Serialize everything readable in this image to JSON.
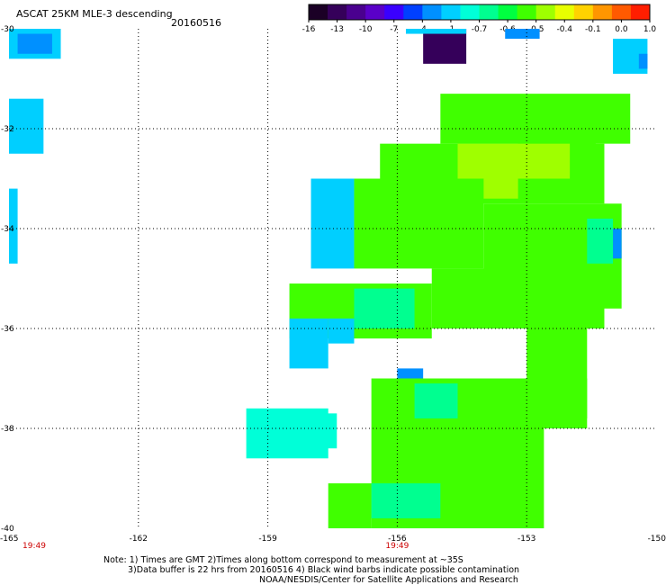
{
  "title": "ASCAT 25KM MLE-3 descending",
  "date": "20160516",
  "colorbar": {
    "labels": [
      "-16",
      "-13",
      "-10",
      "-7",
      "-4",
      "-1",
      "-0.7",
      "-0.6",
      "-0.5",
      "-0.4",
      "-0.1",
      "0.0",
      "1.0"
    ],
    "colors": [
      "#1b0026",
      "#35005a",
      "#4a008f",
      "#5a00c8",
      "#3a00ff",
      "#0040ff",
      "#0090ff",
      "#00cfff",
      "#00ffd8",
      "#00ff90",
      "#00ff40",
      "#40ff00",
      "#9fff00",
      "#e8ff00",
      "#ffd200",
      "#ff9600",
      "#ff5a00",
      "#ff1e00"
    ]
  },
  "chart_data": {
    "type": "heatmap",
    "title": "ASCAT 25KM MLE-3 descending",
    "date": "20160516",
    "xlim": [
      -165,
      -150
    ],
    "ylim": [
      -40,
      -30
    ],
    "x_ticks": [
      "-165",
      "-162",
      "-159",
      "-156",
      "-153",
      "-150"
    ],
    "y_ticks": [
      "-30",
      "-32",
      "-34",
      "-36",
      "-38",
      "-40"
    ],
    "x_time_labels": [
      {
        "x": -165,
        "label": "19:49"
      },
      {
        "x": -156,
        "label": "19:49"
      }
    ],
    "grid": true,
    "cells": [
      {
        "lon0": -165.0,
        "lon1": -163.8,
        "lat0": -30.6,
        "lat1": -30.0,
        "v": -2.0
      },
      {
        "lon0": -164.8,
        "lon1": -164.0,
        "lat0": -30.5,
        "lat1": -30.1,
        "v": -3.0
      },
      {
        "lon0": -165.0,
        "lon1": -164.2,
        "lat0": -32.5,
        "lat1": -31.4,
        "v": -1.5
      },
      {
        "lon0": -165.0,
        "lon1": -164.8,
        "lat0": -34.7,
        "lat1": -33.2,
        "v": -1.5
      },
      {
        "lon0": -155.4,
        "lon1": -154.4,
        "lat0": -30.7,
        "lat1": -30.0,
        "v": -14.0
      },
      {
        "lon0": -155.8,
        "lon1": -154.4,
        "lat0": -30.1,
        "lat1": -30.0,
        "v": -1.0
      },
      {
        "lon0": -153.5,
        "lon1": -152.7,
        "lat0": -30.2,
        "lat1": -30.0,
        "v": -3.0
      },
      {
        "lon0": -151.0,
        "lon1": -150.2,
        "lat0": -30.9,
        "lat1": -30.2,
        "v": -1.0
      },
      {
        "lon0": -150.4,
        "lon1": -150.2,
        "lat0": -30.8,
        "lat1": -30.5,
        "v": -3.0
      },
      {
        "lon0": -155.0,
        "lon1": -150.6,
        "lat0": -32.3,
        "lat1": -31.3,
        "v": -0.55
      },
      {
        "lon0": -153.2,
        "lon1": -151.4,
        "lat0": -32.5,
        "lat1": -31.7,
        "v": -0.53
      },
      {
        "lon0": -156.4,
        "lon1": -151.2,
        "lat0": -33.5,
        "lat1": -32.3,
        "v": -0.55
      },
      {
        "lon0": -154.6,
        "lon1": -152.0,
        "lat0": -33.0,
        "lat1": -32.3,
        "v": -0.5
      },
      {
        "lon0": -154.0,
        "lon1": -153.2,
        "lat0": -33.4,
        "lat1": -32.8,
        "v": -0.45
      },
      {
        "lon0": -158.0,
        "lon1": -157.0,
        "lat0": -34.8,
        "lat1": -33.0,
        "v": -1.5
      },
      {
        "lon0": -157.0,
        "lon1": -154.0,
        "lat0": -34.8,
        "lat1": -33.0,
        "v": -0.55
      },
      {
        "lon0": -154.0,
        "lon1": -150.8,
        "lat0": -35.6,
        "lat1": -33.5,
        "v": -0.55
      },
      {
        "lon0": -151.6,
        "lon1": -151.0,
        "lat0": -34.7,
        "lat1": -33.8,
        "v": -0.65
      },
      {
        "lon0": -151.0,
        "lon1": -150.8,
        "lat0": -34.6,
        "lat1": -34.0,
        "v": -3.0
      },
      {
        "lon0": -158.5,
        "lon1": -155.2,
        "lat0": -36.2,
        "lat1": -35.1,
        "v": -0.55
      },
      {
        "lon0": -157.0,
        "lon1": -155.6,
        "lat0": -36.0,
        "lat1": -35.2,
        "v": -0.65
      },
      {
        "lon0": -155.2,
        "lon1": -151.2,
        "lat0": -36.0,
        "lat1": -34.8,
        "v": -0.55
      },
      {
        "lon0": -158.5,
        "lon1": -157.6,
        "lat0": -36.8,
        "lat1": -35.8,
        "v": -2.0
      },
      {
        "lon0": -157.6,
        "lon1": -157.0,
        "lat0": -36.3,
        "lat1": -35.8,
        "v": -1.2
      },
      {
        "lon0": -153.0,
        "lon1": -151.6,
        "lat0": -37.8,
        "lat1": -36.0,
        "v": -0.55
      },
      {
        "lon0": -156.6,
        "lon1": -151.6,
        "lat0": -38.0,
        "lat1": -37.0,
        "v": -0.55
      },
      {
        "lon0": -156.0,
        "lon1": -155.4,
        "lat0": -37.0,
        "lat1": -36.8,
        "v": -3.5
      },
      {
        "lon0": -155.6,
        "lon1": -154.6,
        "lat0": -37.8,
        "lat1": -37.1,
        "v": -0.68
      },
      {
        "lon0": -156.6,
        "lon1": -152.6,
        "lat0": -40.0,
        "lat1": -38.0,
        "v": -0.55
      },
      {
        "lon0": -159.5,
        "lon1": -157.6,
        "lat0": -38.6,
        "lat1": -37.6,
        "v": -0.9
      },
      {
        "lon0": -158.8,
        "lon1": -157.4,
        "lat0": -38.4,
        "lat1": -37.7,
        "v": -0.85
      },
      {
        "lon0": -157.6,
        "lon1": -156.6,
        "lat0": -40.0,
        "lat1": -39.1,
        "v": -0.55
      },
      {
        "lon0": -156.6,
        "lon1": -155.0,
        "lat0": -39.8,
        "lat1": -39.1,
        "v": -0.65
      }
    ]
  },
  "footer": {
    "line1": "Note: 1) Times are GMT 2)Times along bottom correspond to measurement at ~35S",
    "line2": "3)Data buffer is 22 hrs from 20160516 4) Black wind barbs indicate possible contamination",
    "line3": "NOAA/NESDIS/Center for Satellite Applications and Research"
  }
}
